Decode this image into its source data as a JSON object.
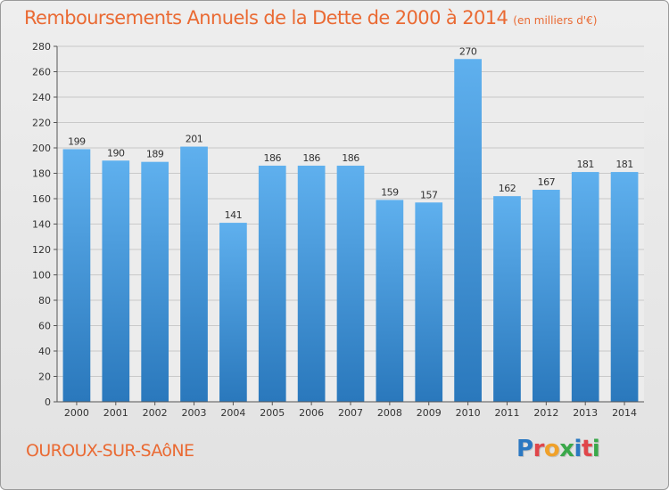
{
  "chart_data": {
    "type": "bar",
    "title": "Remboursements Annuels de la Dette de 2000 à 2014",
    "subtitle": "(en milliers d'€)",
    "categories": [
      "2000",
      "2001",
      "2002",
      "2003",
      "2004",
      "2005",
      "2006",
      "2007",
      "2008",
      "2009",
      "2010",
      "2011",
      "2012",
      "2013",
      "2014"
    ],
    "values": [
      199,
      190,
      189,
      201,
      141,
      186,
      186,
      186,
      159,
      157,
      270,
      162,
      167,
      181,
      181
    ],
    "xlabel": "",
    "ylabel": "",
    "ylim": [
      0,
      280
    ],
    "yticks": [
      0,
      20,
      40,
      60,
      80,
      100,
      120,
      140,
      160,
      180,
      200,
      220,
      240,
      260,
      280
    ],
    "grid": true,
    "legend": "none",
    "bar_color": "#3d8fd6"
  },
  "footer": {
    "commune": "OUROUX-SUR-SAôNE"
  },
  "logo": {
    "letters": [
      {
        "ch": "P",
        "color": "#2b78c2"
      },
      {
        "ch": "r",
        "color": "#e0464a"
      },
      {
        "ch": "o",
        "color": "#f0a12a"
      },
      {
        "ch": "x",
        "color": "#3aa84a"
      },
      {
        "ch": "i",
        "color": "#2b78c2"
      },
      {
        "ch": "t",
        "color": "#e0464a"
      },
      {
        "ch": "i",
        "color": "#3aa84a"
      }
    ]
  }
}
